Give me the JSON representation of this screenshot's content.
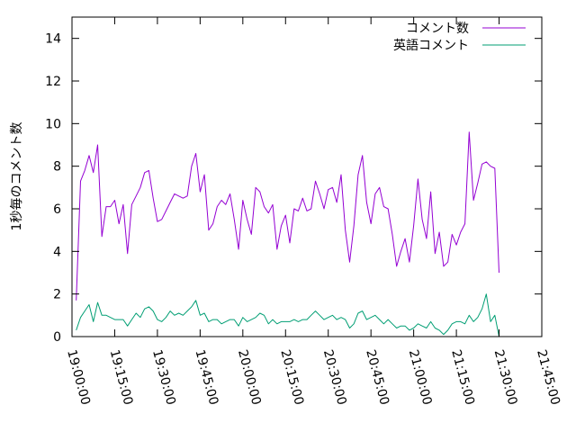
{
  "chart_data": {
    "type": "line",
    "title": "",
    "xlabel": "",
    "ylabel": "1秒毎のコメント数",
    "xlim": [
      "19:00:00",
      "21:45:00"
    ],
    "ylim": [
      0,
      15
    ],
    "x_ticks": [
      "19:00:00",
      "19:15:00",
      "19:30:00",
      "19:45:00",
      "20:00:00",
      "20:15:00",
      "20:30:00",
      "20:45:00",
      "21:00:00",
      "21:15:00",
      "21:30:00",
      "21:45:00"
    ],
    "y_ticks": [
      0,
      2,
      4,
      6,
      8,
      10,
      12,
      14
    ],
    "grid": false,
    "legend_position": "top-right",
    "x_sample_interval_minutes": 1.5,
    "series": [
      {
        "name": "コメント数",
        "color": "#9400d3",
        "x_start": "19:01:30",
        "values": [
          1.7,
          7.3,
          7.8,
          8.5,
          7.7,
          9.0,
          4.7,
          6.1,
          6.1,
          6.4,
          5.3,
          6.2,
          3.9,
          6.2,
          6.6,
          7.0,
          7.7,
          7.8,
          6.5,
          5.4,
          5.5,
          5.9,
          6.3,
          6.7,
          6.6,
          6.5,
          6.6,
          8.0,
          8.6,
          6.8,
          7.6,
          5.0,
          5.3,
          6.1,
          6.4,
          6.2,
          6.7,
          5.5,
          4.1,
          6.4,
          5.5,
          4.8,
          7.0,
          6.8,
          6.1,
          5.8,
          6.2,
          4.1,
          5.2,
          5.7,
          4.4,
          6.0,
          5.9,
          6.5,
          5.9,
          6.0,
          7.3,
          6.7,
          6.0,
          6.9,
          7.0,
          6.3,
          7.6,
          5.0,
          3.5,
          5.2,
          7.6,
          8.5,
          6.3,
          5.3,
          6.7,
          7.0,
          6.1,
          6.0,
          4.8,
          3.3,
          4.0,
          4.6,
          3.5,
          5.2,
          7.4,
          5.5,
          4.6,
          6.8,
          3.9,
          4.9,
          3.3,
          3.5,
          4.8,
          4.3,
          4.9,
          5.3,
          9.6,
          6.4,
          7.2,
          8.1,
          8.2,
          8.0,
          7.9,
          3.0
        ]
      },
      {
        "name": "英語コメント",
        "color": "#009e73",
        "x_start": "19:01:30",
        "values": [
          0.3,
          0.9,
          1.2,
          1.5,
          0.7,
          1.6,
          1.0,
          1.0,
          0.9,
          0.8,
          0.8,
          0.8,
          0.5,
          0.8,
          1.1,
          0.9,
          1.3,
          1.4,
          1.2,
          0.8,
          0.7,
          0.9,
          1.2,
          1.0,
          1.1,
          1.0,
          1.2,
          1.4,
          1.7,
          1.0,
          1.1,
          0.7,
          0.8,
          0.8,
          0.6,
          0.7,
          0.8,
          0.8,
          0.5,
          0.9,
          0.7,
          0.8,
          0.9,
          1.1,
          1.0,
          0.6,
          0.8,
          0.6,
          0.7,
          0.7,
          0.7,
          0.8,
          0.7,
          0.8,
          0.8,
          1.0,
          1.2,
          1.0,
          0.8,
          0.9,
          1.0,
          0.8,
          0.9,
          0.8,
          0.4,
          0.6,
          1.1,
          1.2,
          0.8,
          0.9,
          1.0,
          0.8,
          0.6,
          0.8,
          0.6,
          0.4,
          0.5,
          0.5,
          0.3,
          0.4,
          0.6,
          0.5,
          0.4,
          0.7,
          0.4,
          0.3,
          0.1,
          0.3,
          0.6,
          0.7,
          0.7,
          0.6,
          1.0,
          0.7,
          0.9,
          1.3,
          2.0,
          0.7,
          1.0,
          0.0
        ]
      }
    ]
  }
}
